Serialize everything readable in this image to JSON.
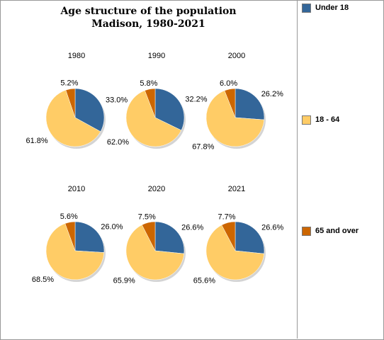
{
  "title_lines": [
    "Age structure of the population",
    "Madison, 1980-2021"
  ],
  "legend": [
    {
      "label": "Under 18",
      "color": "#336699"
    },
    {
      "label": "18 - 64",
      "color": "#ffcc66"
    },
    {
      "label": "65 and over",
      "color": "#cc6600"
    }
  ],
  "chart_data": {
    "type": "pie",
    "title": "Age structure of the population\nMadison, 1980-2021",
    "slice_names": [
      "Under 18",
      "18 - 64",
      "65 and over"
    ],
    "colors": [
      "#336699",
      "#ffcc66",
      "#cc6600"
    ],
    "legend_position": "right",
    "pies": [
      {
        "year": "1980",
        "values": [
          33.0,
          61.8,
          5.2
        ],
        "labels": [
          "33.0%",
          "61.8%",
          "5.2%"
        ]
      },
      {
        "year": "1990",
        "values": [
          32.2,
          62.0,
          5.8
        ],
        "labels": [
          "32.2%",
          "62.0%",
          "5.8%"
        ]
      },
      {
        "year": "2000",
        "values": [
          26.2,
          67.8,
          6.0
        ],
        "labels": [
          "26.2%",
          "67.8%",
          "6.0%"
        ]
      },
      {
        "year": "2010",
        "values": [
          26.0,
          68.5,
          5.6
        ],
        "labels": [
          "26.0%",
          "68.5%",
          "5.6%"
        ]
      },
      {
        "year": "2020",
        "values": [
          26.6,
          65.9,
          7.5
        ],
        "labels": [
          "26.6%",
          "65.9%",
          "7.5%"
        ]
      },
      {
        "year": "2021",
        "values": [
          26.6,
          65.6,
          7.7
        ],
        "labels": [
          "26.6%",
          "65.6%",
          "7.7%"
        ]
      }
    ]
  }
}
